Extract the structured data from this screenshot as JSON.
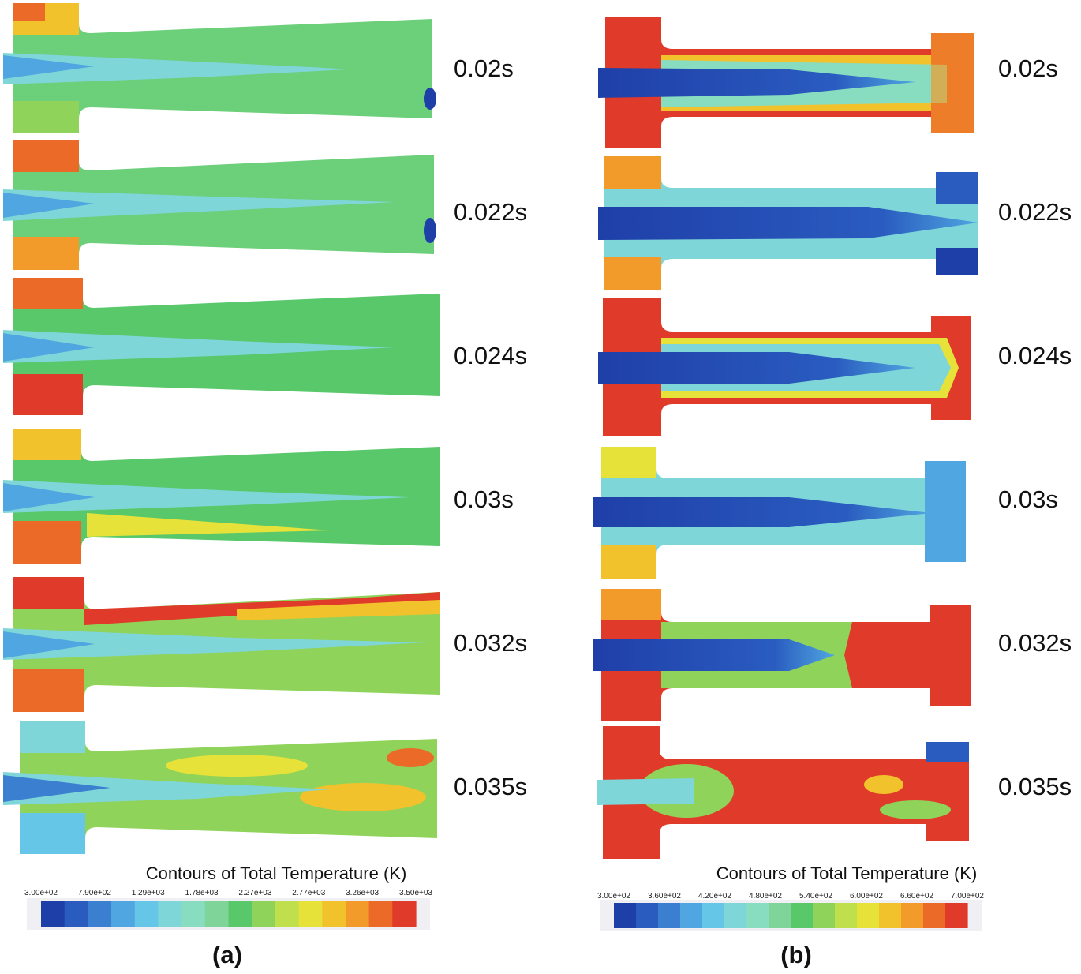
{
  "figure": {
    "quantity_title": "Contours of Total Temperature (K)",
    "time_labels": [
      "0.02s",
      "0.022s",
      "0.024s",
      "0.03s",
      "0.032s",
      "0.035s"
    ]
  },
  "panels": [
    {
      "id": "a",
      "letter": "(a)",
      "colorbar_title": "Contours of Total Temperature (K)",
      "tick_labels": [
        "3.00e+02",
        "7.90e+02",
        "1.29e+03",
        "1.78e+03",
        "2.27e+03",
        "2.77e+03",
        "3.26e+03",
        "3.50e+03"
      ],
      "snapshots": [
        {
          "time": "0.02s",
          "state": "green core, cool jet on axis"
        },
        {
          "time": "0.022s",
          "state": "green, warm corners"
        },
        {
          "time": "0.024s",
          "state": "green, hot left chamber"
        },
        {
          "time": "0.03s",
          "state": "green, yellow lower wall"
        },
        {
          "time": "0.032s",
          "state": "hot upper wall band"
        },
        {
          "time": "0.035s",
          "state": "mixed turbulent"
        }
      ]
    },
    {
      "id": "b",
      "letter": "(b)",
      "colorbar_title": "Contours of Total Temperature (K)",
      "tick_labels": [
        "3.00e+02",
        "3.60e+02",
        "4.20e+02",
        "4.80e+02",
        "5.40e+02",
        "6.00e+02",
        "6.60e+02",
        "7.00e+02"
      ],
      "snapshots": [
        {
          "time": "0.02s"
        },
        {
          "time": "0.022s"
        },
        {
          "time": "0.024s"
        },
        {
          "time": "0.03s"
        },
        {
          "time": "0.032s"
        },
        {
          "time": "0.035s"
        }
      ]
    }
  ],
  "colors": {
    "colormap": [
      "#1f3fa8",
      "#2a5cc0",
      "#3a7fd0",
      "#4fa6e0",
      "#66c6e8",
      "#7fd6d8",
      "#88dcc0",
      "#7fd49a",
      "#58c86a",
      "#8fd35a",
      "#bfe04c",
      "#e6e23a",
      "#f2c22c",
      "#f29a2a",
      "#ec6a28",
      "#e03a2a"
    ],
    "cold_jet": "#4fa6e0",
    "core_green": "#6ccf7a",
    "hot": "#e03a2a",
    "deep_blue": "#1f3fa8"
  }
}
